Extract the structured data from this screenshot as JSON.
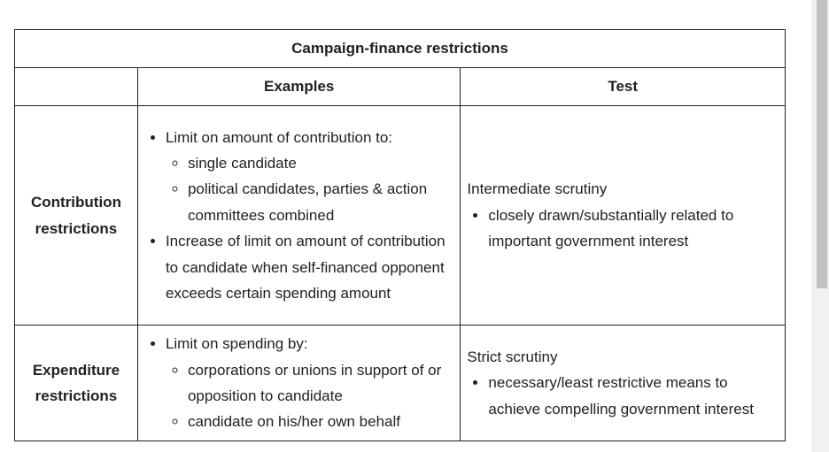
{
  "table": {
    "caption": "Campaign-finance restrictions",
    "headers": [
      "",
      "Examples",
      "Test"
    ],
    "rows": [
      {
        "category": "Contribution restrictions",
        "examples": [
          {
            "text": "Limit on amount of contribution to:",
            "sub": [
              "single candidate",
              "political candidates, parties & action committees combined"
            ]
          },
          {
            "text": "Increase of limit on amount of contribution to candidate when self-financed opponent exceeds certain spending amount",
            "sub": []
          }
        ],
        "test_title": "Intermediate scrutiny",
        "test_items": [
          "closely drawn/substantially related to important government interest"
        ]
      },
      {
        "category": "Expenditure restrictions",
        "examples": [
          {
            "text": "Limit on spending by:",
            "sub": [
              "corporations or unions in support of or opposition to candidate",
              "candidate on his/her own behalf"
            ]
          }
        ],
        "test_title": "Strict scrutiny",
        "test_items": [
          "necessary/least restrictive means to achieve compelling government interest"
        ]
      }
    ]
  }
}
